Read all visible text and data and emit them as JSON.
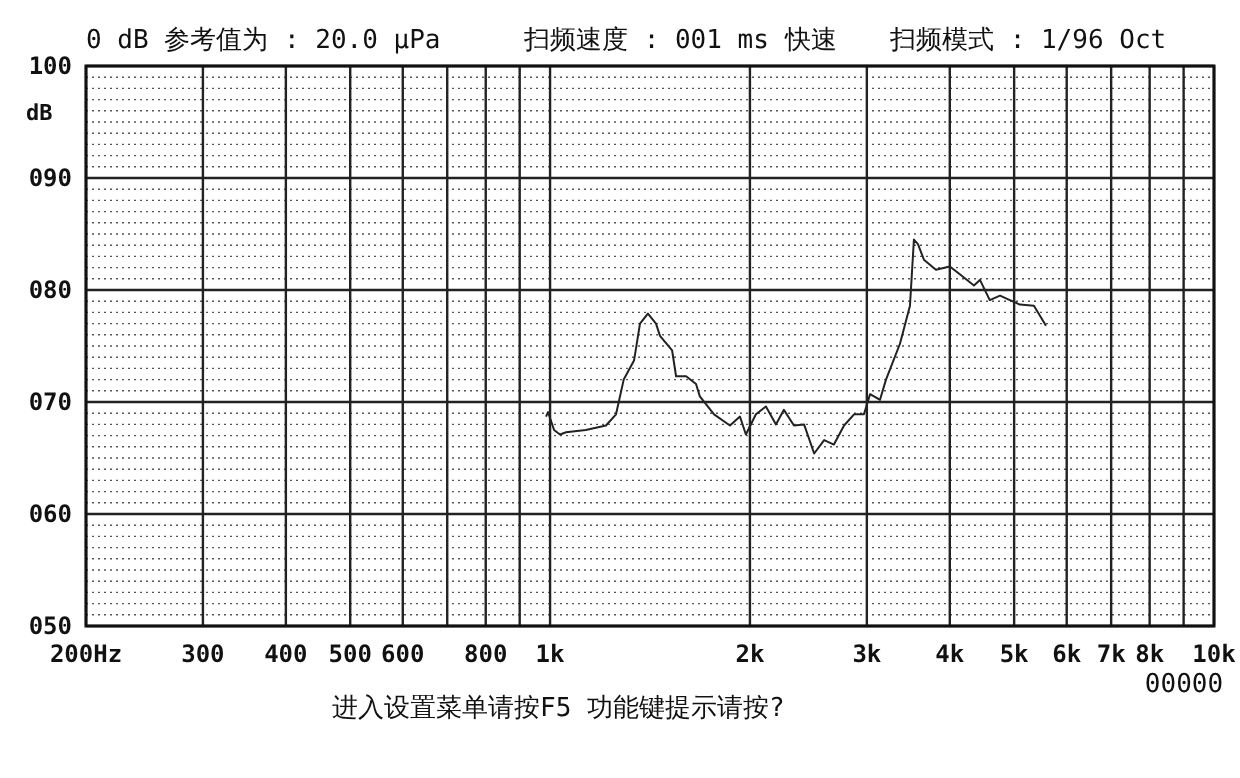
{
  "chart_data": {
    "type": "line",
    "ylabel": "dB",
    "log": "x",
    "grid": true,
    "marker": "none",
    "line_style": "solid",
    "annotations": [
      "0 dB 参考值为 : 20.0 μPa",
      "扫频速度 : 001 ms 快速",
      "扫频模式 : 1/96  Oct",
      "进入设置菜单请按F5  功能键提示请按?",
      "00000"
    ],
    "xlim": [
      200,
      10000
    ],
    "xticks": [
      {
        "value": 200,
        "label": "200Hz"
      },
      300,
      400,
      500,
      600,
      {
        "value": 700,
        "label": null
      },
      800,
      {
        "value": 900,
        "label": null
      },
      {
        "value": 1000,
        "label": "1k"
      },
      {
        "value": 2000,
        "label": "2k"
      },
      {
        "value": 3000,
        "label": "3k"
      },
      {
        "value": 4000,
        "label": "4k"
      },
      {
        "value": 5000,
        "label": "5k"
      },
      {
        "value": 6000,
        "label": "6k"
      },
      {
        "value": 7000,
        "label": "7k"
      },
      {
        "value": 8000,
        "label": "8k"
      },
      {
        "value": 9000,
        "label": null
      },
      {
        "value": 10000,
        "label": "10k"
      }
    ],
    "ylim": [
      50,
      100
    ],
    "yticks": [
      {
        "value": 50,
        "label": "050"
      },
      {
        "value": 60,
        "label": "060"
      },
      {
        "value": 70,
        "label": "070"
      },
      {
        "value": 80,
        "label": "080"
      },
      {
        "value": 90,
        "label": "090"
      },
      100
    ],
    "series": [
      {
        "color": "#222222",
        "x": [
          986,
          993,
          1014,
          1035,
          1057,
          1132,
          1214,
          1257,
          1291,
          1338,
          1366,
          1404,
          1444,
          1464,
          1527,
          1548,
          1603,
          1659,
          1681,
          1766,
          1866,
          1932,
          1972,
          2042,
          2114,
          2189,
          2250,
          2330,
          2413,
          2499,
          2587,
          2676,
          2772,
          2870,
          2970,
          3034,
          3140,
          3206,
          3365,
          3484,
          3532,
          3582,
          3657,
          3812,
          4000,
          4142,
          4349,
          4441,
          4595,
          4761,
          4927,
          5101,
          5355,
          5584
        ],
        "values": [
          68.7,
          69.1,
          67.5,
          67.1,
          67.3,
          67.5,
          67.9,
          68.9,
          72.0,
          73.7,
          77.0,
          77.9,
          77.0,
          75.9,
          74.6,
          72.3,
          72.3,
          71.6,
          70.5,
          68.9,
          67.9,
          68.7,
          67.1,
          68.9,
          69.6,
          68.0,
          69.3,
          67.9,
          68.0,
          65.4,
          66.6,
          66.2,
          67.9,
          68.9,
          68.9,
          70.7,
          70.2,
          72.0,
          75.2,
          78.6,
          84.5,
          84.1,
          82.7,
          81.8,
          82.1,
          81.4,
          80.4,
          80.9,
          79.1,
          79.5,
          79.1,
          78.7,
          78.6,
          76.8
        ]
      }
    ]
  }
}
